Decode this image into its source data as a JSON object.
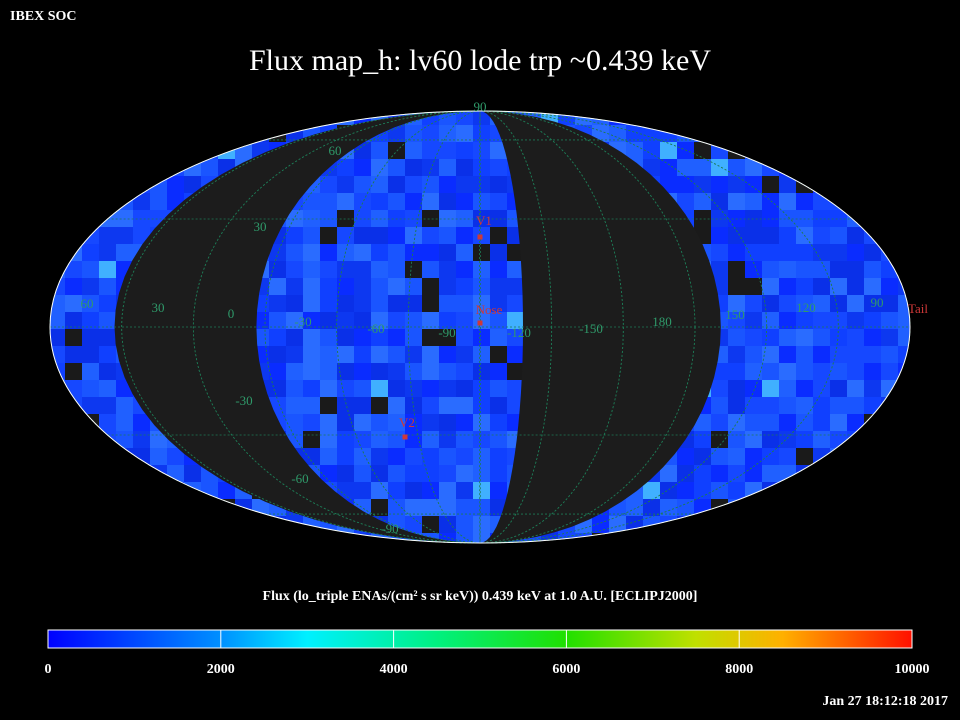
{
  "header": "IBEX SOC",
  "title": "Flux   map_h: lv60 lode trp ~0.439 keV",
  "map": {
    "latitude_labels": [
      90,
      60,
      30,
      -30,
      -60,
      -90
    ],
    "longitude_labels": [
      60,
      30,
      0,
      -30,
      -60,
      -90,
      -120,
      -150,
      180,
      150,
      120,
      90
    ],
    "markers": [
      "V1",
      "Nose",
      "V2",
      "Tail"
    ]
  },
  "colorbar": {
    "label": "Flux (lo_triple ENAs/(cm² s sr keV))  0.439 keV at 1.0 A.U. [ECLIPJ2000]",
    "lim": [
      0,
      10000
    ],
    "ticks": [
      0,
      2000,
      4000,
      6000,
      8000,
      10000
    ]
  },
  "timestamp": "Jan 27 18:12:18 2017"
}
